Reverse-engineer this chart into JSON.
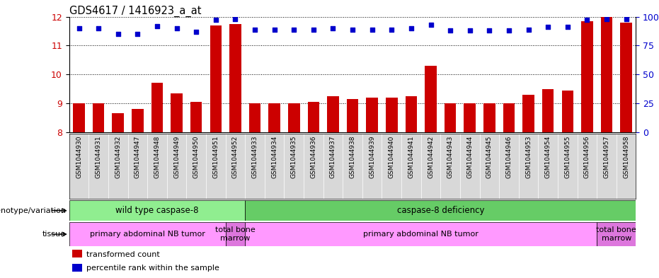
{
  "title": "GDS4617 / 1416923_a_at",
  "samples": [
    "GSM1044930",
    "GSM1044931",
    "GSM1044932",
    "GSM1044947",
    "GSM1044948",
    "GSM1044949",
    "GSM1044950",
    "GSM1044951",
    "GSM1044952",
    "GSM1044933",
    "GSM1044934",
    "GSM1044935",
    "GSM1044936",
    "GSM1044937",
    "GSM1044938",
    "GSM1044939",
    "GSM1044940",
    "GSM1044941",
    "GSM1044942",
    "GSM1044943",
    "GSM1044944",
    "GSM1044945",
    "GSM1044946",
    "GSM1044953",
    "GSM1044954",
    "GSM1044955",
    "GSM1044956",
    "GSM1044957",
    "GSM1044958"
  ],
  "transformed_count": [
    9.0,
    9.0,
    8.65,
    8.8,
    9.7,
    9.35,
    9.05,
    11.7,
    11.75,
    9.0,
    9.0,
    9.0,
    9.05,
    9.25,
    9.15,
    9.2,
    9.2,
    9.25,
    10.3,
    9.0,
    9.0,
    9.0,
    9.0,
    9.3,
    9.5,
    9.45,
    11.85,
    12.0,
    11.8
  ],
  "percentile_rank": [
    90,
    90,
    85,
    85,
    92,
    90,
    87,
    97,
    98,
    89,
    89,
    89,
    89,
    90,
    89,
    89,
    89,
    90,
    93,
    88,
    88,
    88,
    88,
    89,
    91,
    91,
    97,
    98,
    98
  ],
  "ylim_left": [
    8,
    12
  ],
  "ylim_right": [
    0,
    100
  ],
  "yticks_left": [
    8,
    9,
    10,
    11,
    12
  ],
  "yticks_right": [
    0,
    25,
    50,
    75,
    100
  ],
  "bar_color": "#cc0000",
  "dot_color": "#0000cc",
  "genotype_groups": [
    {
      "label": "wild type caspase-8",
      "start": 0,
      "end": 8,
      "color": "#90ee90"
    },
    {
      "label": "caspase-8 deficiency",
      "start": 9,
      "end": 28,
      "color": "#66cc66"
    }
  ],
  "tissue_groups": [
    {
      "label": "primary abdominal NB tumor",
      "start": 0,
      "end": 7,
      "color": "#ff99ff"
    },
    {
      "label": "total bone\nmarrow",
      "start": 8,
      "end": 8,
      "color": "#dd77dd"
    },
    {
      "label": "primary abdominal NB tumor",
      "start": 9,
      "end": 26,
      "color": "#ff99ff"
    },
    {
      "label": "total bone\nmarrow",
      "start": 27,
      "end": 28,
      "color": "#dd77dd"
    }
  ],
  "legend_items": [
    {
      "color": "#cc0000",
      "label": "transformed count"
    },
    {
      "color": "#0000cc",
      "label": "percentile rank within the sample"
    }
  ]
}
